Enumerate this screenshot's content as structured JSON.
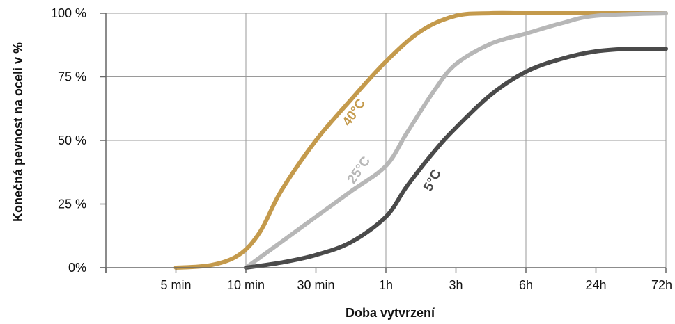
{
  "chart_data": {
    "type": "line",
    "title": "",
    "xlabel": "Doba vytvrzení",
    "ylabel": "Konečná pevnost na oceli v %",
    "x_ticks": [
      "",
      "5 min",
      "10 min",
      "30 min",
      "1h",
      "3h",
      "6h",
      "24h",
      "72h"
    ],
    "y_ticks": [
      "0%",
      "25 %",
      "50 %",
      "75 %",
      "100 %"
    ],
    "ylim": [
      0,
      100
    ],
    "grid": true,
    "legend": "none",
    "series": [
      {
        "name": "40°C",
        "color": "#c49a4c",
        "points": [
          [
            1,
            0
          ],
          [
            1.5,
            1
          ],
          [
            1.9,
            5
          ],
          [
            2.2,
            14
          ],
          [
            2.5,
            30
          ],
          [
            3,
            50
          ],
          [
            3.5,
            66
          ],
          [
            4,
            81
          ],
          [
            4.5,
            93
          ],
          [
            5,
            99
          ],
          [
            5.5,
            100
          ],
          [
            6,
            100
          ],
          [
            7,
            100
          ],
          [
            8,
            100
          ]
        ]
      },
      {
        "name": "25°C",
        "color": "#b7b7b7",
        "points": [
          [
            2,
            0
          ],
          [
            2.5,
            10
          ],
          [
            3,
            20
          ],
          [
            3.5,
            30
          ],
          [
            4,
            40
          ],
          [
            4.3,
            53
          ],
          [
            4.7,
            70
          ],
          [
            5,
            80
          ],
          [
            5.5,
            88
          ],
          [
            6,
            92
          ],
          [
            6.5,
            96
          ],
          [
            7,
            99
          ],
          [
            8,
            100
          ]
        ]
      },
      {
        "name": "5°C",
        "color": "#4a4a4a",
        "points": [
          [
            2,
            0
          ],
          [
            2.5,
            2
          ],
          [
            3,
            5
          ],
          [
            3.5,
            10
          ],
          [
            4,
            20
          ],
          [
            4.3,
            32
          ],
          [
            4.7,
            46
          ],
          [
            5,
            55
          ],
          [
            5.5,
            68
          ],
          [
            6,
            77
          ],
          [
            6.5,
            82
          ],
          [
            7,
            85
          ],
          [
            7.5,
            86
          ],
          [
            8,
            86
          ]
        ]
      }
    ]
  }
}
